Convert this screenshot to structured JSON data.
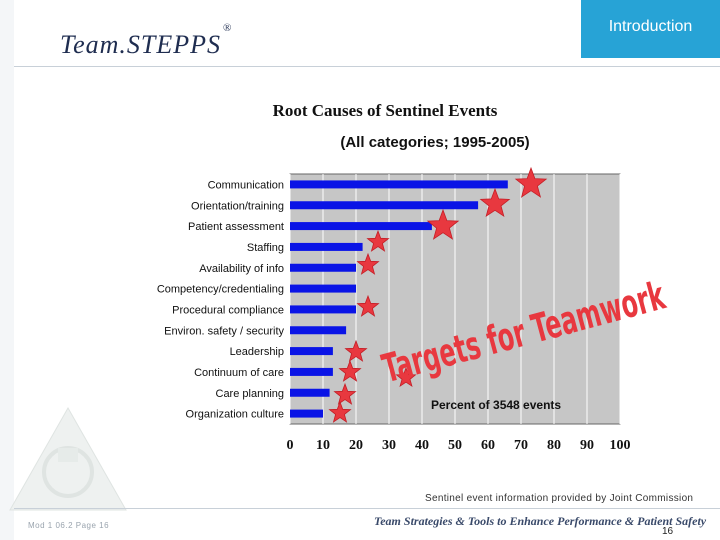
{
  "header": {
    "logo_text": "Team",
    "logo_text2": "STEPPS",
    "registered_mark": "®",
    "section_tab": "Introduction"
  },
  "chart_data": {
    "type": "bar",
    "orientation": "horizontal",
    "title": "Root Causes of Sentinel Events",
    "subtitle": "(All categories; 1995-2005)",
    "categories": [
      "Communication",
      "Orientation/training",
      "Patient assessment",
      "Staffing",
      "Availability of info",
      "Competency/credentialing",
      "Procedural compliance",
      "Environ. safety / security",
      "Leadership",
      "Continuum of care",
      "Care planning",
      "Organization culture"
    ],
    "values": [
      66,
      57,
      43,
      22,
      20,
      20,
      20,
      17,
      13,
      13,
      12,
      10
    ],
    "xlim": [
      0,
      100
    ],
    "xticks": [
      "0",
      "10",
      "20",
      "30",
      "40",
      "50",
      "60",
      "70",
      "80",
      "90",
      "100"
    ],
    "axis_annotation": "Percent of 3548 events",
    "overlay_text": "Targets for Teamwork",
    "bar_color": "#0a14e6",
    "plot_background": "#c6c6c6",
    "star_color": "#e8383f",
    "grid": true
  },
  "footer": {
    "source_note": "Sentinel event information provided by Joint Commission",
    "module_ref": "Mod 1 06.2  Page 16",
    "tagline": "Team Strategies & Tools to Enhance Performance & Patient Safety",
    "page_number": "16"
  }
}
